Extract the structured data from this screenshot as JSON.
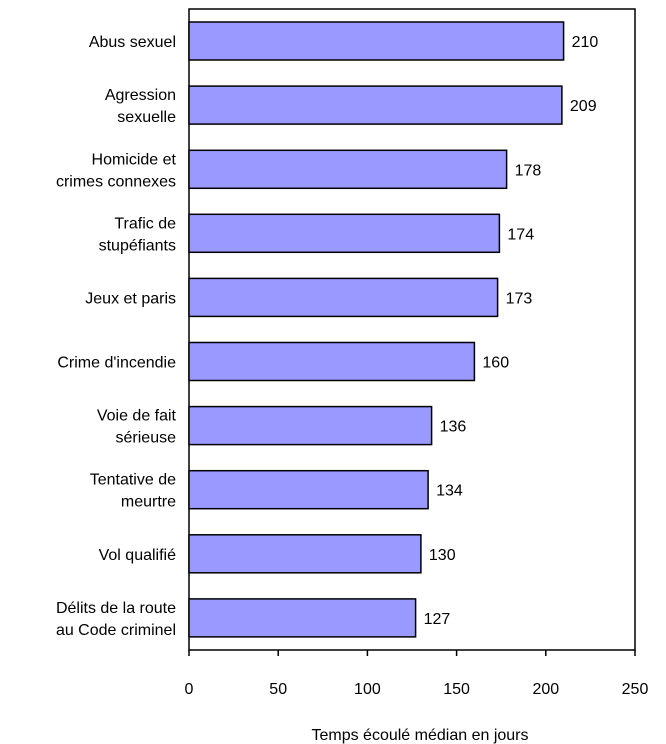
{
  "chart_data": {
    "type": "bar",
    "orientation": "horizontal",
    "categories": [
      [
        "Abus sexuel"
      ],
      [
        "Agression",
        "sexuelle"
      ],
      [
        "Homicide et",
        "crimes connexes"
      ],
      [
        "Trafic de",
        "stupéfiants"
      ],
      [
        "Jeux et paris"
      ],
      [
        "Crime d'incendie"
      ],
      [
        "Voie de fait",
        "sérieuse"
      ],
      [
        "Tentative de",
        "meurtre"
      ],
      [
        "Vol qualifié"
      ],
      [
        "Délits de la route",
        "au Code criminel"
      ]
    ],
    "values": [
      210,
      209,
      178,
      174,
      173,
      160,
      136,
      134,
      130,
      127
    ],
    "xlabel": "Temps écoulé médian en jours",
    "ylabel": "",
    "xlim": [
      0,
      250
    ],
    "xticks": [
      0,
      50,
      100,
      150,
      200,
      250
    ],
    "grid": false,
    "colors": {
      "bar_fill": "#9999FF",
      "bar_stroke": "#000000"
    }
  }
}
